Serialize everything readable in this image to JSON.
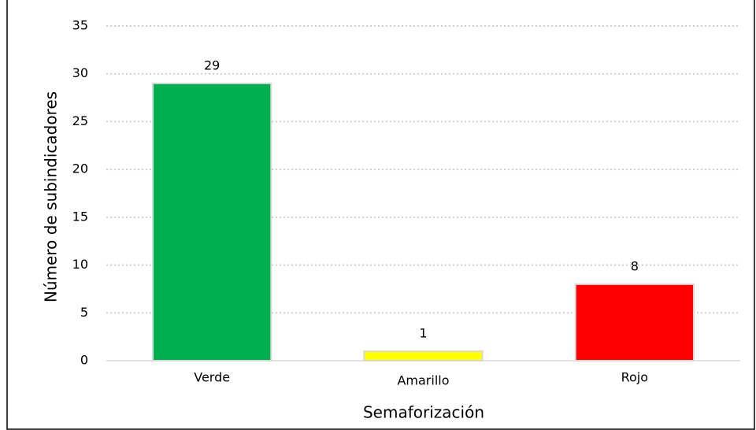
{
  "chart_data": {
    "type": "bar",
    "x_label": "Semaforización",
    "y_label": "Número de subindicadores",
    "categories": [
      "Verde",
      "Amarillo",
      "Rojo"
    ],
    "values": [
      29,
      1,
      8
    ],
    "colors": [
      "#00b050",
      "#ffff00",
      "#ff0000"
    ],
    "ylim": [
      0,
      35
    ],
    "yticks": [
      0,
      5,
      10,
      15,
      20,
      25,
      30,
      35
    ],
    "grid": true
  }
}
